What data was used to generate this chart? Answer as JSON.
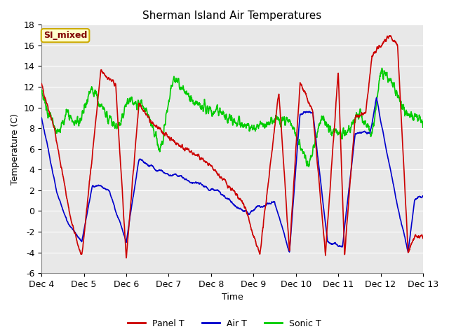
{
  "title": "Sherman Island Air Temperatures",
  "xlabel": "Time",
  "ylabel": "Temperature (C)",
  "ylim": [
    -6,
    18
  ],
  "yticks": [
    -6,
    -4,
    -2,
    0,
    2,
    4,
    6,
    8,
    10,
    12,
    14,
    16,
    18
  ],
  "xtick_labels": [
    "Dec 4",
    "Dec 5",
    "Dec 6",
    "Dec 7",
    "Dec 8",
    "Dec 9",
    "Dec 10",
    "Dec 11",
    "Dec 12",
    "Dec 13"
  ],
  "panel_t_color": "#cc0000",
  "air_t_color": "#0000cc",
  "sonic_t_color": "#00cc00",
  "fig_bg_color": "#ffffff",
  "plot_bg_color": "#e8e8e8",
  "grid_color": "#ffffff",
  "annotation_text": "SI_mixed",
  "annotation_bg": "#ffffcc",
  "annotation_fg": "#800000",
  "annotation_border": "#ccaa00",
  "legend_labels": [
    "Panel T",
    "Air T",
    "Sonic T"
  ],
  "title_fontsize": 11,
  "axis_label_fontsize": 9,
  "tick_fontsize": 9,
  "line_width": 1.2
}
